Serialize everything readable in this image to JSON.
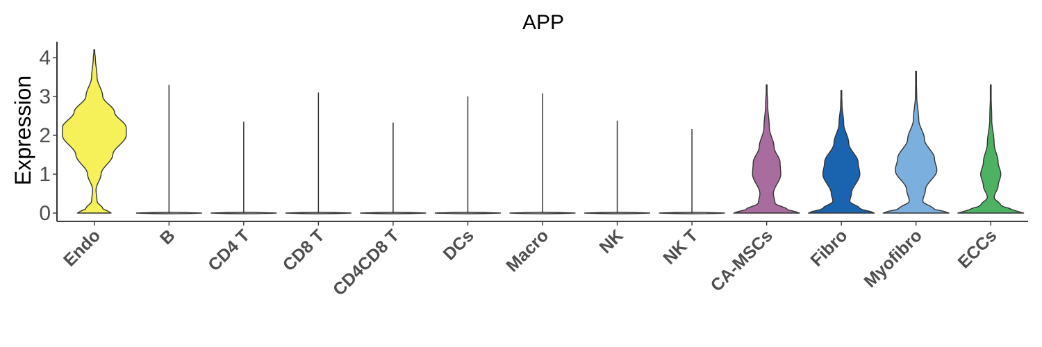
{
  "chart_data": {
    "type": "violin",
    "title": "APP",
    "xlabel": "",
    "ylabel": "Expression",
    "ylim": [
      -0.2,
      4.4
    ],
    "yticks": [
      0,
      1,
      2,
      3,
      4
    ],
    "grid": false,
    "legend": "none",
    "categories": [
      "Endo",
      "B",
      "CD4 T",
      "CD8 T",
      "CD4CD8 T",
      "DCs",
      "Macro",
      "NK",
      "NK T",
      "CA-MSCs",
      "Fibro",
      "Myofibro",
      "ECCs"
    ],
    "series": [
      {
        "category": "Endo",
        "color": "#F7F159",
        "max": 4.2,
        "profile": [
          [
            0.0,
            0.5
          ],
          [
            0.12,
            0.25
          ],
          [
            0.3,
            0.08
          ],
          [
            0.6,
            0.05
          ],
          [
            1.0,
            0.2
          ],
          [
            1.5,
            0.55
          ],
          [
            2.0,
            0.95
          ],
          [
            2.2,
            0.95
          ],
          [
            2.6,
            0.6
          ],
          [
            3.0,
            0.25
          ],
          [
            3.5,
            0.08
          ],
          [
            4.0,
            0.03
          ],
          [
            4.2,
            0.0
          ]
        ]
      },
      {
        "category": "B",
        "color": "#4d4d4d",
        "max": 3.3,
        "profile": [
          [
            0.0,
            0.98
          ],
          [
            0.05,
            0.0
          ]
        ]
      },
      {
        "category": "CD4 T",
        "color": "#4d4d4d",
        "max": 2.35,
        "profile": [
          [
            0.0,
            0.98
          ],
          [
            0.05,
            0.0
          ]
        ]
      },
      {
        "category": "CD8 T",
        "color": "#4d4d4d",
        "max": 3.1,
        "profile": [
          [
            0.0,
            0.98
          ],
          [
            0.05,
            0.0
          ]
        ]
      },
      {
        "category": "CD4CD8 T",
        "color": "#4d4d4d",
        "max": 2.33,
        "profile": [
          [
            0.0,
            0.98
          ],
          [
            0.05,
            0.0
          ]
        ]
      },
      {
        "category": "DCs",
        "color": "#4d4d4d",
        "max": 3.0,
        "profile": [
          [
            0.0,
            0.98
          ],
          [
            0.05,
            0.0
          ]
        ]
      },
      {
        "category": "Macro",
        "color": "#4d4d4d",
        "max": 3.08,
        "profile": [
          [
            0.0,
            0.98
          ],
          [
            0.05,
            0.0
          ]
        ]
      },
      {
        "category": "NK",
        "color": "#4d4d4d",
        "max": 2.38,
        "profile": [
          [
            0.0,
            0.98
          ],
          [
            0.05,
            0.0
          ]
        ]
      },
      {
        "category": "NK T",
        "color": "#4d4d4d",
        "max": 2.16,
        "profile": [
          [
            0.0,
            0.98
          ],
          [
            0.05,
            0.0
          ]
        ]
      },
      {
        "category": "CA-MSCs",
        "color": "#A86D9E",
        "max": 3.3,
        "profile": [
          [
            0.0,
            0.98
          ],
          [
            0.1,
            0.6
          ],
          [
            0.25,
            0.25
          ],
          [
            0.5,
            0.2
          ],
          [
            1.0,
            0.42
          ],
          [
            1.3,
            0.4
          ],
          [
            1.7,
            0.22
          ],
          [
            2.2,
            0.08
          ],
          [
            2.8,
            0.03
          ],
          [
            3.3,
            0.0
          ]
        ]
      },
      {
        "category": "Fibro",
        "color": "#1A63AE",
        "max": 3.15,
        "profile": [
          [
            0.0,
            0.98
          ],
          [
            0.12,
            0.55
          ],
          [
            0.3,
            0.25
          ],
          [
            0.5,
            0.3
          ],
          [
            1.0,
            0.55
          ],
          [
            1.3,
            0.5
          ],
          [
            1.8,
            0.22
          ],
          [
            2.3,
            0.07
          ],
          [
            2.8,
            0.02
          ],
          [
            3.15,
            0.0
          ]
        ]
      },
      {
        "category": "Myofibro",
        "color": "#7BAFDE",
        "max": 3.65,
        "profile": [
          [
            0.0,
            0.98
          ],
          [
            0.12,
            0.5
          ],
          [
            0.3,
            0.2
          ],
          [
            0.6,
            0.28
          ],
          [
            1.1,
            0.62
          ],
          [
            1.4,
            0.55
          ],
          [
            1.9,
            0.25
          ],
          [
            2.4,
            0.08
          ],
          [
            3.0,
            0.02
          ],
          [
            3.65,
            0.0
          ]
        ]
      },
      {
        "category": "ECCs",
        "color": "#4DB263",
        "max": 3.3,
        "profile": [
          [
            0.0,
            0.98
          ],
          [
            0.08,
            0.65
          ],
          [
            0.2,
            0.3
          ],
          [
            0.4,
            0.1
          ],
          [
            0.7,
            0.22
          ],
          [
            1.0,
            0.3
          ],
          [
            1.3,
            0.22
          ],
          [
            1.8,
            0.1
          ],
          [
            2.4,
            0.03
          ],
          [
            3.3,
            0.0
          ]
        ]
      }
    ]
  }
}
